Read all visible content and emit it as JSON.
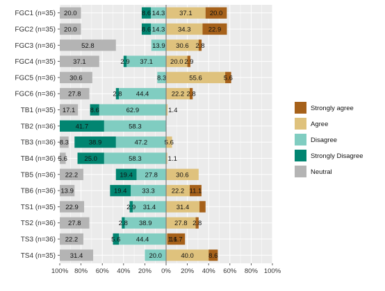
{
  "chart_data": {
    "type": "bar",
    "orientation": "horizontal",
    "stacked": "diverging",
    "title": "",
    "xlabel": "",
    "ylabel": "",
    "xlim": [
      -100,
      100
    ],
    "x_tick_labels": [
      "100%",
      "80%",
      "60%",
      "40%",
      "20%",
      "0%",
      "20%",
      "40%",
      "60%",
      "80%",
      "100%"
    ],
    "grid": true,
    "legend_position": "right",
    "categories": [
      "FGC1 (n=35)",
      "FGC2 (n=35)",
      "FGC3 (n=36)",
      "FGC4 (n=35)",
      "FGC5 (n=36)",
      "FGC6 (n=36)",
      "TB1 (n=35)",
      "TB2 (n=36)",
      "TB3 (n=36)",
      "TB4 (n=36)",
      "TB5 (n=36)",
      "TB6 (n=36)",
      "TS1 (n=35)",
      "TS2 (n=36)",
      "TS3 (n=36)",
      "TS4 (n=35)"
    ],
    "series": [
      {
        "name": "Strongly agree",
        "color": "#a6611a",
        "side": "positive",
        "order": 1,
        "values": [
          20.0,
          22.9,
          2.8,
          2.9,
          5.6,
          2.8,
          0,
          0,
          0,
          0,
          0,
          11.1,
          5.7,
          2.8,
          16.7,
          8.6
        ],
        "labels": [
          "20.0",
          "22.9",
          "2.8",
          "2.9",
          "5.6",
          "2.8",
          "",
          "",
          "",
          "",
          "",
          "11.1",
          "",
          "2.8",
          "16.7",
          "8.6"
        ]
      },
      {
        "name": "Agree",
        "color": "#dfc27d",
        "side": "positive",
        "order": 0,
        "values": [
          37.1,
          34.3,
          30.6,
          20.0,
          55.6,
          22.2,
          1.4,
          0,
          5.6,
          1.1,
          30.6,
          22.2,
          31.4,
          27.8,
          1.1,
          40.0
        ],
        "labels": [
          "37.1",
          "34.3",
          "30.6",
          "20.0",
          "55.6",
          "22.2",
          "1.4",
          "",
          "5.6",
          "1.1",
          "30.6",
          "22.2",
          "31.4",
          "27.8",
          "1.1",
          "40.0"
        ]
      },
      {
        "name": "Disagree",
        "color": "#80cdc1",
        "side": "negative",
        "order": 0,
        "values": [
          14.3,
          14.3,
          13.9,
          37.1,
          8.3,
          44.4,
          62.9,
          58.3,
          47.2,
          58.3,
          27.8,
          33.3,
          31.4,
          38.9,
          44.4,
          20.0
        ],
        "labels": [
          "14.3",
          "14.3",
          "13.9",
          "37.1",
          "8.3",
          "44.4",
          "62.9",
          "58.3",
          "47.2",
          "58.3",
          "27.8",
          "33.3",
          "31.4",
          "38.9",
          "44.4",
          "20.0"
        ]
      },
      {
        "name": "Strongly Disagree",
        "color": "#018571",
        "side": "negative",
        "order": 1,
        "values": [
          8.6,
          8.6,
          0,
          2.9,
          0,
          2.8,
          8.6,
          41.7,
          38.9,
          25.0,
          19.4,
          19.4,
          2.9,
          2.8,
          5.6,
          0
        ],
        "labels": [
          "8.6",
          "8.6",
          "",
          "2.9",
          "",
          "2.8",
          "8.6",
          "41.7",
          "38.9",
          "25.0",
          "19.4",
          "19.4",
          "2.9",
          "2.8",
          "5.6",
          ""
        ]
      },
      {
        "name": "Neutral",
        "color": "#b4b4b4",
        "side": "left-offset",
        "values": [
          20.0,
          20.0,
          52.8,
          37.1,
          30.6,
          27.8,
          17.1,
          0,
          8.3,
          5.6,
          22.2,
          13.9,
          22.9,
          27.8,
          22.2,
          31.4
        ],
        "labels": [
          "20.0",
          "20.0",
          "52.8",
          "37.1",
          "30.6",
          "27.8",
          "17.1",
          "",
          "8.3",
          "5.6",
          "22.2",
          "13.9",
          "22.9",
          "27.8",
          "22.2",
          "31.4"
        ]
      }
    ],
    "legend": [
      {
        "name": "Strongly agree",
        "color": "#a6611a"
      },
      {
        "name": "Agree",
        "color": "#dfc27d"
      },
      {
        "name": "Disagree",
        "color": "#80cdc1"
      },
      {
        "name": "Strongly Disagree",
        "color": "#018571"
      },
      {
        "name": "Neutral",
        "color": "#b4b4b4"
      }
    ],
    "panel_background": "#ebebeb",
    "gridline_color": "#ffffff",
    "zero_line_color": "#7f7f7f"
  }
}
